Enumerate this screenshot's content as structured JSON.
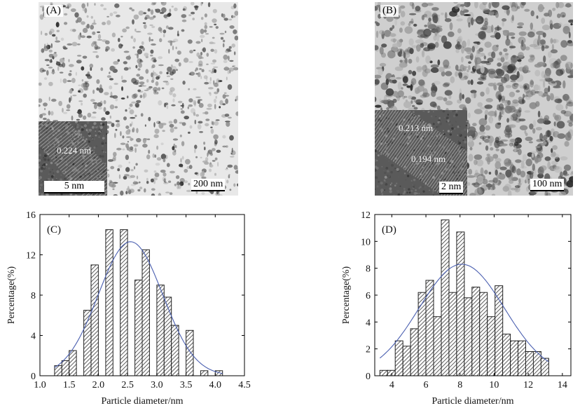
{
  "images": [
    {
      "panel_label": "(A)",
      "scale_bar": "200 nm",
      "inset_scale_bar": "5 nm",
      "inset_annotations": [
        "0.224 nm"
      ]
    },
    {
      "panel_label": "(B)",
      "scale_bar": "100 nm",
      "inset_scale_bar": "2 nm",
      "inset_annotations": [
        "0.213 nm",
        "0.194 nm"
      ]
    }
  ],
  "colors": {
    "bar_hatch": "#333333",
    "fit_curve": "#4a5fb0",
    "axis": "#000000"
  },
  "chart_data": [
    {
      "type": "bar",
      "panel_label": "(C)",
      "title": "",
      "xlabel": "Particle diameter/nm",
      "ylabel": "Percentage(%)",
      "xlim": [
        1.0,
        4.5
      ],
      "ylim": [
        0,
        16
      ],
      "xticks": [
        "1.0",
        "1.5",
        "2.0",
        "2.5",
        "3.0",
        "3.5",
        "4.0",
        "4.5"
      ],
      "yticks": [
        "0",
        "4",
        "8",
        "12",
        "16"
      ],
      "bin_width": 0.125,
      "bins": [
        {
          "x": 1.25,
          "y": 1.0
        },
        {
          "x": 1.375,
          "y": 1.5
        },
        {
          "x": 1.5,
          "y": 2.5
        },
        {
          "x": 1.75,
          "y": 6.5
        },
        {
          "x": 1.875,
          "y": 11.0
        },
        {
          "x": 2.125,
          "y": 14.5
        },
        {
          "x": 2.375,
          "y": 14.5
        },
        {
          "x": 2.625,
          "y": 9.5
        },
        {
          "x": 2.75,
          "y": 12.5
        },
        {
          "x": 3.0,
          "y": 9.0
        },
        {
          "x": 3.125,
          "y": 7.8
        },
        {
          "x": 3.25,
          "y": 5.0
        },
        {
          "x": 3.5,
          "y": 4.5
        },
        {
          "x": 3.75,
          "y": 0.5
        },
        {
          "x": 4.0,
          "y": 0.5
        }
      ],
      "fit_curve": {
        "type": "gaussian",
        "center": 2.55,
        "sigma": 0.55,
        "peak": 13.3
      },
      "grid": false
    },
    {
      "type": "bar",
      "panel_label": "(D)",
      "title": "",
      "xlabel": "Particle diameter/nm",
      "ylabel": "Percentage(%)",
      "xlim": [
        3,
        14.5
      ],
      "ylim": [
        0,
        12
      ],
      "xticks": [
        "4",
        "6",
        "8",
        "10",
        "12",
        "14"
      ],
      "yticks": [
        "0",
        "2",
        "4",
        "6",
        "8",
        "10",
        "12"
      ],
      "bin_width": 0.45,
      "bins": [
        {
          "x": 3.3,
          "y": 0.4
        },
        {
          "x": 3.75,
          "y": 0.4
        },
        {
          "x": 4.2,
          "y": 2.6
        },
        {
          "x": 4.65,
          "y": 2.2
        },
        {
          "x": 5.1,
          "y": 3.5
        },
        {
          "x": 5.55,
          "y": 6.2
        },
        {
          "x": 6.0,
          "y": 7.1
        },
        {
          "x": 6.45,
          "y": 4.4
        },
        {
          "x": 6.9,
          "y": 11.6
        },
        {
          "x": 7.35,
          "y": 6.2
        },
        {
          "x": 7.8,
          "y": 10.7
        },
        {
          "x": 8.25,
          "y": 5.8
        },
        {
          "x": 8.7,
          "y": 6.6
        },
        {
          "x": 9.15,
          "y": 6.2
        },
        {
          "x": 9.6,
          "y": 4.4
        },
        {
          "x": 10.05,
          "y": 6.7
        },
        {
          "x": 10.5,
          "y": 3.1
        },
        {
          "x": 10.95,
          "y": 2.6
        },
        {
          "x": 11.4,
          "y": 2.6
        },
        {
          "x": 11.85,
          "y": 1.8
        },
        {
          "x": 12.3,
          "y": 1.8
        },
        {
          "x": 12.75,
          "y": 1.3
        }
      ],
      "fit_curve": {
        "type": "gaussian",
        "center": 8.1,
        "sigma": 2.5,
        "peak": 8.3
      },
      "grid": false
    }
  ]
}
